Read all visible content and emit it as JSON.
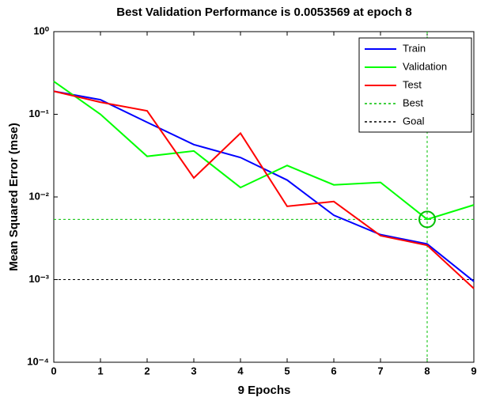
{
  "chart_data": {
    "type": "line",
    "title": "Best Validation Performance is 0.0053569 at epoch 8",
    "x_label": "9 Epochs",
    "y_label": "Mean Squared Error  (mse)",
    "x": [
      0,
      1,
      2,
      3,
      4,
      5,
      6,
      7,
      8,
      9
    ],
    "xlim": [
      0,
      9
    ],
    "xticks": [
      0,
      1,
      2,
      3,
      4,
      5,
      6,
      7,
      8,
      9
    ],
    "ylim": [
      0.0001,
      1
    ],
    "y_scale": "log",
    "yticks": [
      {
        "value": 0.0001,
        "label": "10⁻⁴"
      },
      {
        "value": 0.001,
        "label": "10⁻³"
      },
      {
        "value": 0.01,
        "label": "10⁻²"
      },
      {
        "value": 0.1,
        "label": "10⁻¹"
      },
      {
        "value": 1,
        "label": "10⁰"
      }
    ],
    "series": [
      {
        "name": "Train",
        "color": "#0000ff",
        "values": [
          0.19,
          0.15,
          0.08,
          0.043,
          0.03,
          0.016,
          0.006,
          0.0035,
          0.0027,
          0.00095
        ]
      },
      {
        "name": "Validation",
        "color": "#00ff00",
        "values": [
          0.25,
          0.1,
          0.031,
          0.036,
          0.013,
          0.024,
          0.014,
          0.015,
          0.0053569,
          0.008
        ]
      },
      {
        "name": "Test",
        "color": "#ff0000",
        "values": [
          0.19,
          0.14,
          0.11,
          0.017,
          0.059,
          0.0077,
          0.0088,
          0.0034,
          0.0026,
          0.00078
        ]
      }
    ],
    "best": {
      "name": "Best",
      "color": "#00c000",
      "x": 8,
      "y": 0.0053569,
      "line_style": "dashed"
    },
    "goal": {
      "name": "Goal",
      "color": "#000000",
      "value": 0.001,
      "line_style": "dashed"
    },
    "legend": "top-right"
  }
}
